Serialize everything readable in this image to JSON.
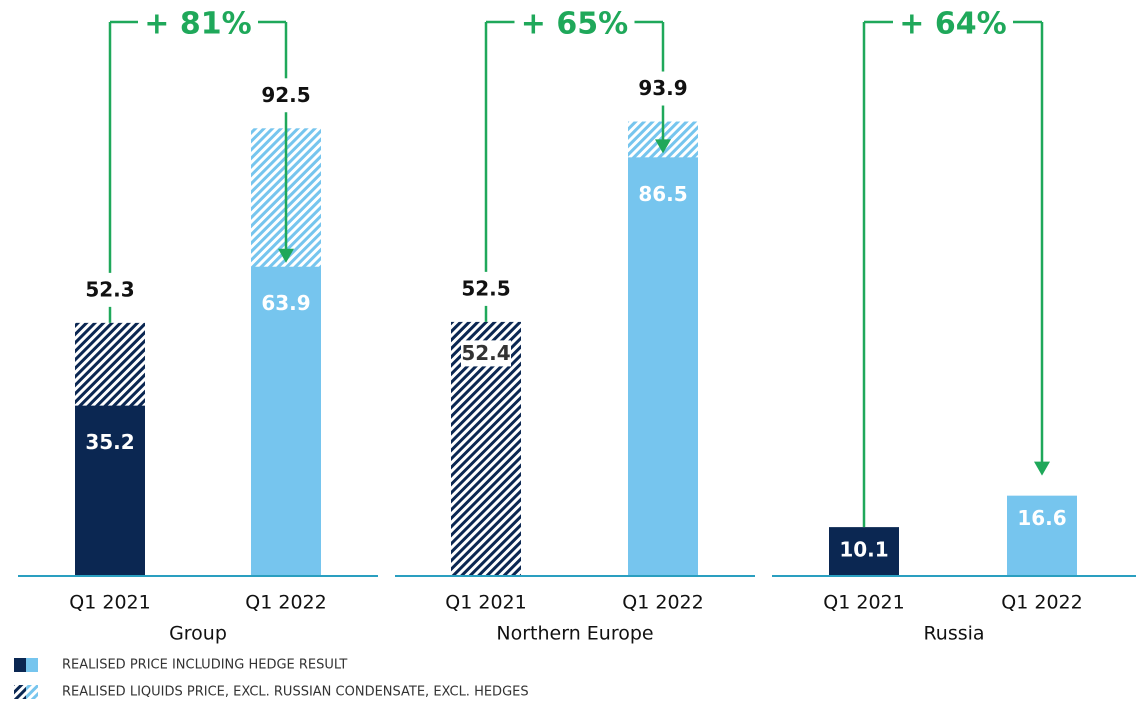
{
  "chart_data": {
    "type": "bar",
    "categories": [
      "Q1 2021",
      "Q1 2022"
    ],
    "category_colors": [
      "#0b2752",
      "#76c5ee"
    ],
    "series": [
      {
        "name": "REALISED PRICE INCLUDING HEDGE RESULT",
        "style": "solid"
      },
      {
        "name": "REALISED LIQUIDS PRICE, EXCL. RUSSIAN CONDENSATE, EXCL. HEDGES",
        "style": "hatched"
      }
    ],
    "change_color": "#1fa85a",
    "panels": [
      {
        "name": "Group",
        "values": [
          35.2,
          63.9
        ],
        "liquids": [
          52.3,
          92.5
        ],
        "change": "+ 81%"
      },
      {
        "name": "Northern Europe",
        "values": [
          52.4,
          86.5
        ],
        "liquids": [
          52.5,
          93.9
        ],
        "change": "+ 65%"
      },
      {
        "name": "Russia",
        "values": [
          10.1,
          16.6
        ],
        "liquids": [
          null,
          null
        ],
        "change": "+ 64%"
      }
    ]
  }
}
